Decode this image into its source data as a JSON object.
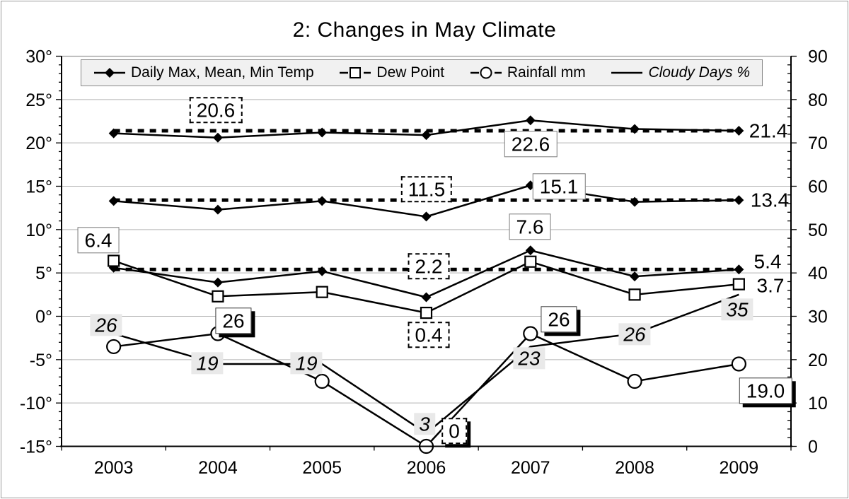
{
  "title": "2: Changes in May Climate",
  "colors": {
    "line": "#000000",
    "grid": "#b3b3b3",
    "frame_top": "#999999",
    "axis": "#000000",
    "legend_bg": "#f1f1f1",
    "label_shade": "#e9e9e9",
    "reference_dash": "#000000"
  },
  "chart_data": {
    "type": "line",
    "title": "2: Changes in May Climate",
    "categories": [
      "2003",
      "2004",
      "2005",
      "2006",
      "2007",
      "2008",
      "2009"
    ],
    "left_axis": {
      "min": -15,
      "max": 30,
      "major_step": 5,
      "minor_step": 1,
      "tick_labels": [
        "30°",
        "25°",
        "20°",
        "15°",
        "10°",
        "5°",
        "0°",
        "-5°",
        "-10°",
        "-15°"
      ],
      "tick_values": [
        30,
        25,
        20,
        15,
        10,
        5,
        0,
        -5,
        -10,
        -15
      ]
    },
    "right_axis": {
      "min": 0,
      "max": 90,
      "major_step": 10,
      "minor_step": 2,
      "tick_labels": [
        "90",
        "80",
        "70",
        "60",
        "50",
        "40",
        "30",
        "20",
        "10",
        "0"
      ],
      "tick_values": [
        90,
        80,
        70,
        60,
        50,
        40,
        30,
        20,
        10,
        0
      ]
    },
    "grid": "horizontal-major",
    "legend_position": "top-inside",
    "series": [
      {
        "name": "Daily Max Temp",
        "marker": "diamond",
        "axis": "left",
        "values": [
          21.1,
          20.6,
          21.2,
          20.9,
          22.6,
          21.6,
          21.4
        ]
      },
      {
        "name": "Mean Temp",
        "marker": "diamond",
        "axis": "left",
        "values": [
          13.3,
          12.3,
          13.3,
          11.5,
          15.1,
          13.2,
          13.4
        ]
      },
      {
        "name": "Min Temp",
        "marker": "diamond",
        "axis": "left",
        "values": [
          5.6,
          3.9,
          5.2,
          2.2,
          7.6,
          4.6,
          5.4
        ]
      },
      {
        "name": "Dew Point",
        "marker": "square",
        "axis": "left",
        "values": [
          6.4,
          2.3,
          2.8,
          0.4,
          6.3,
          2.5,
          3.7
        ]
      },
      {
        "name": "Rainfall mm",
        "marker": "circle",
        "axis": "right",
        "values": [
          23,
          26,
          15,
          0,
          26,
          15,
          19
        ]
      },
      {
        "name": "Cloudy Days %",
        "marker": "none",
        "axis": "right",
        "values": [
          26,
          19,
          19,
          3,
          23,
          26,
          35
        ]
      }
    ],
    "reference_lines": [
      {
        "axis": "left",
        "value": 21.4
      },
      {
        "axis": "left",
        "value": 13.4
      },
      {
        "axis": "left",
        "value": 5.4
      }
    ],
    "legend": [
      {
        "label": "Daily Max, Mean, Min Temp",
        "marker": "diamond",
        "italic": false
      },
      {
        "label": "Dew Point",
        "marker": "square",
        "italic": false
      },
      {
        "label": "Rainfall mm",
        "marker": "circle",
        "italic": false
      },
      {
        "label": "Cloudy Days %",
        "marker": "line",
        "italic": true
      }
    ],
    "annotations": [
      {
        "text": "20.6",
        "x": 303,
        "y": 154,
        "style": "dash",
        "series": "Daily Max Temp",
        "year": "2004"
      },
      {
        "text": "22.6",
        "x": 748,
        "y": 202,
        "style": "box",
        "series": "Daily Max Temp",
        "year": "2007"
      },
      {
        "text": "21.4",
        "x": 1084,
        "y": 183,
        "style": "plain",
        "series": "Daily Max Temp",
        "year": "2009"
      },
      {
        "text": "11.5",
        "x": 601,
        "y": 266,
        "style": "dash",
        "series": "Mean Temp",
        "year": "2006"
      },
      {
        "text": "15.1",
        "x": 788,
        "y": 262,
        "style": "box",
        "series": "Mean Temp",
        "year": "2007"
      },
      {
        "text": "13.4",
        "x": 1086,
        "y": 281,
        "style": "plain",
        "series": "Mean Temp",
        "year": "2009"
      },
      {
        "text": "2.2",
        "x": 604,
        "y": 375,
        "style": "dash",
        "series": "Min Temp",
        "year": "2006"
      },
      {
        "text": "7.6",
        "x": 747,
        "y": 319,
        "style": "box",
        "series": "Min Temp",
        "year": "2007"
      },
      {
        "text": "5.4",
        "x": 1083,
        "y": 368,
        "style": "plain",
        "series": "Min Temp",
        "year": "2009"
      },
      {
        "text": "6.4",
        "x": 137,
        "y": 338,
        "style": "box",
        "series": "Dew Point",
        "year": "2003"
      },
      {
        "text": "0.4",
        "x": 604,
        "y": 472,
        "style": "dash",
        "series": "Dew Point",
        "year": "2006"
      },
      {
        "text": "3.7",
        "x": 1087,
        "y": 402,
        "style": "plain",
        "series": "Dew Point",
        "year": "2009"
      },
      {
        "text": "26",
        "x": 328,
        "y": 452,
        "style": "box-shadow",
        "series": "Rainfall mm",
        "year": "2004"
      },
      {
        "text": "0",
        "x": 640,
        "y": 608,
        "style": "dash-shadow",
        "series": "Rainfall mm",
        "year": "2006"
      },
      {
        "text": "26",
        "x": 788,
        "y": 450,
        "style": "box-shadow",
        "series": "Rainfall mm",
        "year": "2007"
      },
      {
        "text": "19.0",
        "x": 1080,
        "y": 551,
        "style": "box-shadow",
        "series": "Rainfall mm",
        "year": "2009"
      },
      {
        "text": "26",
        "x": 148,
        "y": 458,
        "style": "shade-italic",
        "series": "Cloudy Days %",
        "year": "2003"
      },
      {
        "text": "19",
        "x": 291,
        "y": 512,
        "style": "shade-italic",
        "series": "Cloudy Days %",
        "year": "2004"
      },
      {
        "text": "19",
        "x": 431,
        "y": 512,
        "style": "shade-italic",
        "series": "Cloudy Days %",
        "year": "2005"
      },
      {
        "text": "3",
        "x": 598,
        "y": 598,
        "style": "shade-italic",
        "series": "Cloudy Days %",
        "year": "2006"
      },
      {
        "text": "23",
        "x": 746,
        "y": 505,
        "style": "shade-italic",
        "series": "Cloudy Days %",
        "year": "2007"
      },
      {
        "text": "26",
        "x": 895,
        "y": 471,
        "style": "shade-italic",
        "series": "Cloudy Days %",
        "year": "2008"
      },
      {
        "text": "35",
        "x": 1040,
        "y": 436,
        "style": "shade-italic",
        "series": "Cloudy Days %",
        "year": "2009"
      }
    ]
  }
}
